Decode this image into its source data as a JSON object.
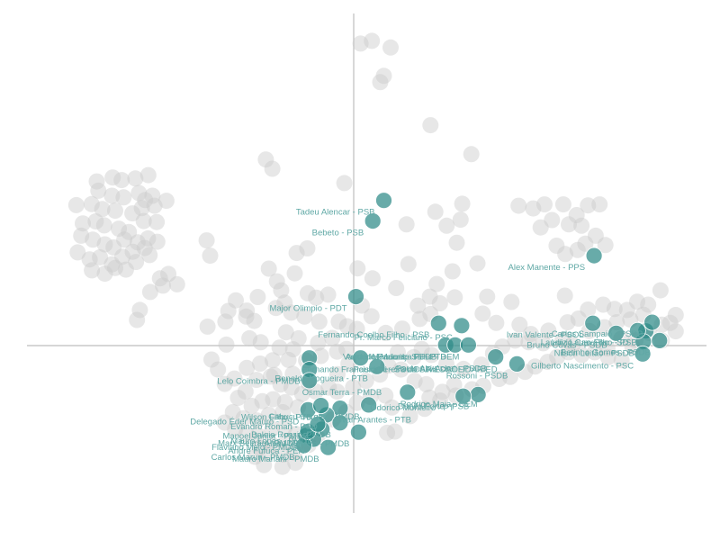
{
  "chart_data": {
    "type": "scatter",
    "title": "",
    "xlabel": "",
    "ylabel": "",
    "xlim": [
      -1.0,
      1.0
    ],
    "ylim": [
      -0.5,
      1.0
    ],
    "grid": false,
    "legend": "none",
    "colors": {
      "highlight": "#2e8b88",
      "background": "#c9c9c9",
      "label": "#5fa8a5",
      "axis": "#bdbdbd"
    },
    "highlighted": [
      {
        "x": 0.093,
        "y": 0.436,
        "label": "Tadeu Alencar - PSB",
        "anchor": "end"
      },
      {
        "x": 0.059,
        "y": 0.374,
        "label": "Bebeto - PSB",
        "anchor": "end"
      },
      {
        "x": 0.742,
        "y": 0.27,
        "label": "Alex Manente - PPS",
        "anchor": "end"
      },
      {
        "x": 0.007,
        "y": 0.147,
        "label": "Major Olimpio - PDT",
        "anchor": "end"
      },
      {
        "x": 0.262,
        "y": 0.067,
        "label": "Fernando Coelho Filho - PSB",
        "anchor": "end"
      },
      {
        "x": 0.333,
        "y": 0.06,
        "label": "Pr. Marco Feliciano - PSC",
        "anchor": "end"
      },
      {
        "x": 0.738,
        "y": 0.067,
        "label": "Ivan Valente - PSOL",
        "anchor": "end"
      },
      {
        "x": 0.81,
        "y": 0.037,
        "label": "Bruno Covas - PSDB",
        "anchor": "end"
      },
      {
        "x": 0.902,
        "y": 0.044,
        "label": "Luiz Lauro Filho - PSB",
        "anchor": "end"
      },
      {
        "x": 0.921,
        "y": 0.07,
        "label": "Carlos Sampaio - PSDB",
        "anchor": "end"
      },
      {
        "x": 0.284,
        "y": 0.002,
        "label": "Vanderlei Macris - PSDB",
        "anchor": "end"
      },
      {
        "x": 0.313,
        "y": 0.002,
        "label": "Arnaldo Faria de Sá - PTB",
        "anchor": "end"
      },
      {
        "x": 0.354,
        "y": 0.002,
        "label": "Mendonça Filho - DEM",
        "anchor": "end"
      },
      {
        "x": 0.438,
        "y": -0.034,
        "label": "Paulo Abi-Ackel - PSDB",
        "anchor": "end"
      },
      {
        "x": 0.504,
        "y": -0.055,
        "label": "Rossoni - PSDB",
        "anchor": "end"
      },
      {
        "x": 0.894,
        "y": 0.012,
        "label": "Nilson Leitão - PSDB",
        "anchor": "end"
      },
      {
        "x": 0.944,
        "y": 0.015,
        "label": "Betinho Gomes - PSDB",
        "anchor": "end"
      },
      {
        "x": 0.892,
        "y": -0.025,
        "label": "Gilberto Nascimento - PSC",
        "anchor": "end"
      },
      {
        "x": -0.137,
        "y": -0.037,
        "label": "Fernando Francischini - SOLIDARIEDADE",
        "anchor": "start"
      },
      {
        "x": 0.021,
        "y": -0.037,
        "label": "Paulo Pereira da Silva - SOLIDARIED",
        "anchor": "start"
      },
      {
        "x": 0.072,
        "y": -0.063,
        "label": "Ronaldo Nogueira - PTB",
        "anchor": "end"
      },
      {
        "x": -0.137,
        "y": -0.072,
        "label": "Lelo Coimbra - PMDB",
        "anchor": "end"
      },
      {
        "x": -0.137,
        "y": -0.105,
        "label": "Osmar Terra - PMDB",
        "anchor": "start"
      },
      {
        "x": 0.166,
        "y": -0.14,
        "label": "Rodrigo Maia - DEM",
        "anchor": "start"
      },
      {
        "x": 0.384,
        "y": -0.147,
        "label": "Danilo Forte - PSB",
        "anchor": "end"
      },
      {
        "x": 0.338,
        "y": -0.152,
        "label": "Odorico Monteiro - PT",
        "anchor": "end"
      },
      {
        "x": 0.046,
        "y": -0.178,
        "label": "Cabuçu Borges - PMDB",
        "anchor": "end"
      },
      {
        "x": -0.141,
        "y": -0.193,
        "label": "Delegado Éder Mauro - PSD",
        "anchor": "end"
      },
      {
        "x": -0.042,
        "y": -0.188,
        "label": "Jovair Arantes - PTB",
        "anchor": "start"
      },
      {
        "x": -0.084,
        "y": -0.208,
        "label": "Evandro Roman - PSD",
        "anchor": "end"
      },
      {
        "x": -0.042,
        "y": -0.232,
        "label": "Baleia Rossi - PMDB",
        "anchor": "end"
      },
      {
        "x": -0.147,
        "y": -0.27,
        "label": "Flaviano Melo - PMDB",
        "anchor": "end"
      },
      {
        "x": -0.098,
        "y": -0.251,
        "label": "Mauro Lopes - PMDB",
        "anchor": "end"
      },
      {
        "x": -0.124,
        "y": -0.281,
        "label": "André Fufuca - PEN",
        "anchor": "end"
      },
      {
        "x": -0.154,
        "y": -0.3,
        "label": "Carlos Marun - PMDB",
        "anchor": "end"
      },
      {
        "x": -0.079,
        "y": -0.306,
        "label": "Mauro Mariani - PMDB",
        "anchor": "end"
      },
      {
        "x": 0.015,
        "y": -0.26,
        "label": "Alceu Moreira - PMDB",
        "anchor": "end"
      },
      {
        "x": -0.142,
        "y": -0.258,
        "label": "Marx Beltrão - PMDB",
        "anchor": "end"
      },
      {
        "x": -0.111,
        "y": -0.236,
        "label": "Manoel Junior - PMDB",
        "anchor": "end"
      },
      {
        "x": -0.101,
        "y": -0.18,
        "label": "Wilson Filho - PTB",
        "anchor": "end"
      },
      {
        "x": 0.876,
        "y": 0.045,
        "label": "Laudivio Carvalho - SD",
        "anchor": "end"
      }
    ],
    "background_points": [
      [
        0.021,
        0.907
      ],
      [
        0.056,
        0.915
      ],
      [
        0.114,
        0.895
      ],
      [
        0.082,
        0.791
      ],
      [
        0.093,
        0.81
      ],
      [
        0.237,
        0.662
      ],
      [
        0.363,
        0.575
      ],
      [
        -0.271,
        0.559
      ],
      [
        -0.251,
        0.531
      ],
      [
        -0.029,
        0.488
      ],
      [
        -0.793,
        0.493
      ],
      [
        -0.744,
        0.505
      ],
      [
        -0.716,
        0.497
      ],
      [
        -0.674,
        0.502
      ],
      [
        -0.634,
        0.512
      ],
      [
        -0.788,
        0.465
      ],
      [
        -0.746,
        0.45
      ],
      [
        -0.71,
        0.445
      ],
      [
        -0.663,
        0.458
      ],
      [
        -0.644,
        0.437
      ],
      [
        -0.621,
        0.45
      ],
      [
        -0.809,
        0.425
      ],
      [
        -0.776,
        0.41
      ],
      [
        -0.736,
        0.405
      ],
      [
        -0.683,
        0.397
      ],
      [
        -0.654,
        0.413
      ],
      [
        -0.615,
        0.42
      ],
      [
        -0.578,
        0.435
      ],
      [
        -0.856,
        0.422
      ],
      [
        -0.836,
        0.367
      ],
      [
        -0.796,
        0.373
      ],
      [
        -0.77,
        0.361
      ],
      [
        -0.725,
        0.351
      ],
      [
        -0.694,
        0.341
      ],
      [
        -0.648,
        0.374
      ],
      [
        -0.608,
        0.371
      ],
      [
        -0.841,
        0.33
      ],
      [
        -0.805,
        0.318
      ],
      [
        -0.768,
        0.304
      ],
      [
        -0.741,
        0.295
      ],
      [
        -0.708,
        0.318
      ],
      [
        -0.667,
        0.31
      ],
      [
        -0.635,
        0.322
      ],
      [
        -0.852,
        0.28
      ],
      [
        -0.815,
        0.259
      ],
      [
        -0.783,
        0.265
      ],
      [
        -0.746,
        0.244
      ],
      [
        -0.714,
        0.267
      ],
      [
        -0.682,
        0.282
      ],
      [
        -0.645,
        0.293
      ],
      [
        -0.606,
        0.312
      ],
      [
        -0.808,
        0.226
      ],
      [
        -0.768,
        0.216
      ],
      [
        -0.736,
        0.233
      ],
      [
        -0.703,
        0.228
      ],
      [
        -0.672,
        0.251
      ],
      [
        -0.63,
        0.272
      ],
      [
        -0.598,
        0.202
      ],
      [
        -0.572,
        0.215
      ],
      [
        -0.589,
        0.18
      ],
      [
        -0.545,
        0.184
      ],
      [
        -0.628,
        0.161
      ],
      [
        -0.66,
        0.107
      ],
      [
        -0.669,
        0.077
      ],
      [
        -0.454,
        0.316
      ],
      [
        -0.443,
        0.27
      ],
      [
        -0.262,
        0.231
      ],
      [
        -0.237,
        0.193
      ],
      [
        -0.182,
        0.217
      ],
      [
        -0.176,
        0.278
      ],
      [
        -0.143,
        0.292
      ],
      [
        -0.142,
        0.157
      ],
      [
        -0.116,
        0.144
      ],
      [
        -0.079,
        0.153
      ],
      [
        -0.224,
        0.166
      ],
      [
        -0.213,
        0.129
      ],
      [
        -0.296,
        0.146
      ],
      [
        -0.33,
        0.105
      ],
      [
        -0.364,
        0.136
      ],
      [
        -0.387,
        0.104
      ],
      [
        -0.451,
        0.057
      ],
      [
        -0.396,
        0.072
      ],
      [
        -0.332,
        0.087
      ],
      [
        -0.307,
        0.074
      ],
      [
        -0.24,
        0.113
      ],
      [
        -0.193,
        0.099
      ],
      [
        -0.152,
        0.087
      ],
      [
        -0.106,
        0.072
      ],
      [
        -0.046,
        0.072
      ],
      [
        -0.02,
        0.058
      ],
      [
        0.025,
        0.12
      ],
      [
        0.055,
        0.088
      ],
      [
        0.01,
        0.05
      ],
      [
        0.012,
        0.232
      ],
      [
        0.058,
        0.202
      ],
      [
        0.131,
        0.173
      ],
      [
        0.169,
        0.245
      ],
      [
        0.163,
        0.364
      ],
      [
        0.252,
        0.402
      ],
      [
        0.287,
        0.36
      ],
      [
        0.33,
        0.378
      ],
      [
        0.335,
        0.426
      ],
      [
        0.318,
        0.309
      ],
      [
        0.382,
        0.247
      ],
      [
        0.305,
        0.223
      ],
      [
        0.256,
        0.185
      ],
      [
        0.235,
        0.147
      ],
      [
        0.266,
        0.127
      ],
      [
        0.312,
        0.145
      ],
      [
        0.237,
        0.095
      ],
      [
        0.204,
        0.08
      ],
      [
        0.412,
        0.147
      ],
      [
        0.398,
        0.096
      ],
      [
        0.44,
        0.068
      ],
      [
        0.487,
        0.131
      ],
      [
        0.512,
        0.063
      ],
      [
        0.54,
        0.01
      ],
      [
        0.585,
        0.007
      ],
      [
        0.509,
        0.42
      ],
      [
        0.554,
        0.412
      ],
      [
        0.589,
        0.424
      ],
      [
        0.647,
        0.424
      ],
      [
        0.688,
        0.392
      ],
      [
        0.723,
        0.421
      ],
      [
        0.759,
        0.424
      ],
      [
        0.577,
        0.355
      ],
      [
        0.612,
        0.377
      ],
      [
        0.664,
        0.364
      ],
      [
        0.703,
        0.36
      ],
      [
        0.747,
        0.33
      ],
      [
        0.777,
        0.302
      ],
      [
        0.626,
        0.3
      ],
      [
        0.653,
        0.275
      ],
      [
        0.691,
        0.287
      ],
      [
        0.715,
        0.306
      ],
      [
        0.652,
        0.15
      ],
      [
        0.723,
        0.108
      ],
      [
        0.77,
        0.123
      ],
      [
        0.805,
        0.11
      ],
      [
        0.844,
        0.107
      ],
      [
        0.875,
        0.132
      ],
      [
        0.909,
        0.123
      ],
      [
        0.947,
        0.166
      ],
      [
        0.994,
        0.092
      ],
      [
        0.951,
        0.063
      ],
      [
        0.977,
        0.068
      ],
      [
        0.994,
        0.043
      ],
      [
        0.951,
        0.015
      ],
      [
        0.87,
        0.016
      ],
      [
        0.826,
        0.021
      ],
      [
        0.783,
        -0.009
      ],
      [
        0.744,
        -0.02
      ],
      [
        0.704,
        -0.028
      ],
      [
        0.663,
        -0.02
      ],
      [
        0.628,
        -0.034
      ],
      [
        0.599,
        -0.049
      ],
      [
        0.56,
        -0.063
      ],
      [
        0.529,
        -0.079
      ],
      [
        0.483,
        -0.094
      ],
      [
        0.449,
        -0.1
      ],
      [
        0.4,
        -0.121
      ],
      [
        0.365,
        -0.131
      ],
      [
        0.315,
        -0.15
      ],
      [
        0.267,
        -0.165
      ],
      [
        0.219,
        -0.19
      ],
      [
        0.103,
        -0.262
      ],
      [
        -0.393,
        0.003
      ],
      [
        -0.439,
        -0.042
      ],
      [
        -0.419,
        -0.072
      ],
      [
        -0.398,
        -0.115
      ],
      [
        -0.368,
        -0.099
      ],
      [
        -0.33,
        -0.067
      ],
      [
        -0.289,
        -0.054
      ],
      [
        -0.25,
        -0.044
      ],
      [
        -0.201,
        -0.043
      ],
      [
        -0.147,
        -0.045
      ],
      [
        -0.101,
        -0.031
      ],
      [
        -0.051,
        -0.018
      ],
      [
        -0.022,
        -0.01
      ],
      [
        -0.016,
        -0.054
      ],
      [
        -0.05,
        -0.086
      ],
      [
        -0.077,
        -0.126
      ],
      [
        -0.117,
        -0.138
      ],
      [
        -0.159,
        -0.145
      ],
      [
        -0.192,
        -0.126
      ],
      [
        -0.226,
        -0.117
      ],
      [
        -0.256,
        -0.093
      ],
      [
        -0.3,
        -0.103
      ],
      [
        -0.334,
        -0.138
      ],
      [
        -0.357,
        -0.157
      ],
      [
        -0.315,
        -0.181
      ],
      [
        -0.282,
        -0.167
      ],
      [
        -0.249,
        -0.161
      ],
      [
        -0.212,
        -0.17
      ],
      [
        -0.172,
        -0.185
      ],
      [
        -0.219,
        -0.2
      ],
      [
        -0.262,
        -0.208
      ],
      [
        -0.298,
        -0.225
      ],
      [
        -0.34,
        -0.218
      ],
      [
        -0.373,
        -0.2
      ],
      [
        -0.398,
        -0.231
      ],
      [
        -0.366,
        -0.251
      ],
      [
        -0.331,
        -0.266
      ],
      [
        -0.295,
        -0.27
      ],
      [
        -0.252,
        -0.25
      ],
      [
        -0.213,
        -0.245
      ],
      [
        -0.178,
        -0.265
      ],
      [
        -0.21,
        -0.29
      ],
      [
        -0.253,
        -0.297
      ],
      [
        -0.29,
        -0.307
      ],
      [
        -0.305,
        -0.334
      ],
      [
        -0.263,
        -0.321
      ],
      [
        -0.217,
        -0.327
      ],
      [
        -0.183,
        -0.321
      ],
      [
        -0.139,
        -0.298
      ],
      [
        -0.112,
        -0.276
      ],
      [
        -0.065,
        -0.222
      ],
      [
        -0.023,
        -0.199
      ],
      [
        0.01,
        -0.172
      ],
      [
        0.052,
        -0.154
      ],
      [
        0.098,
        -0.15
      ],
      [
        -0.277,
        -0.359
      ],
      [
        -0.22,
        -0.364
      ],
      [
        -0.18,
        -0.352
      ],
      [
        -0.245,
        -0.088
      ],
      [
        -0.188,
        -0.085
      ],
      [
        -0.14,
        -0.112
      ],
      [
        -0.229,
        -0.006
      ],
      [
        -0.187,
        -0.011
      ],
      [
        -0.17,
        0.022
      ],
      [
        -0.209,
        0.04
      ],
      [
        -0.287,
        0.01
      ],
      [
        -0.322,
        0.022
      ],
      [
        0.118,
        -0.186
      ],
      [
        0.174,
        -0.212
      ],
      [
        0.234,
        -0.156
      ],
      [
        0.274,
        -0.139
      ],
      [
        0.31,
        -0.118
      ],
      [
        0.136,
        -0.02
      ],
      [
        0.185,
        -0.035
      ],
      [
        0.21,
        -0.01
      ],
      [
        0.24,
        -0.028
      ],
      [
        0.286,
        -0.055
      ],
      [
        0.339,
        -0.07
      ],
      [
        0.394,
        -0.057
      ],
      [
        0.43,
        -0.023
      ],
      [
        0.459,
        -0.003
      ],
      [
        0.498,
        0.015
      ],
      [
        0.547,
        0.035
      ],
      [
        0.601,
        0.045
      ],
      [
        0.66,
        0.07
      ],
      [
        0.694,
        0.081
      ],
      [
        0.727,
        0.044
      ],
      [
        0.774,
        0.055
      ],
      [
        0.812,
        0.07
      ],
      [
        0.854,
        0.078
      ],
      [
        0.894,
        0.093
      ],
      [
        0.913,
        0.038
      ],
      [
        0.86,
        -0.003
      ],
      [
        0.827,
        -0.044
      ],
      [
        0.785,
        -0.035
      ],
      [
        0.676,
        0.003
      ],
      [
        0.645,
        0.018
      ],
      [
        -0.066,
        0.023
      ],
      [
        -0.11,
        0.008
      ],
      [
        -0.051,
        -0.138
      ],
      [
        -0.002,
        -0.125
      ],
      [
        0.038,
        -0.106
      ],
      [
        0.081,
        -0.087
      ],
      [
        0.107,
        -0.06
      ],
      [
        0.146,
        -0.072
      ],
      [
        0.188,
        -0.106
      ],
      [
        0.224,
        -0.116
      ],
      [
        0.099,
        0.038
      ],
      [
        0.15,
        0.051
      ],
      [
        0.198,
        0.12
      ],
      [
        0.127,
        -0.258
      ]
    ]
  }
}
